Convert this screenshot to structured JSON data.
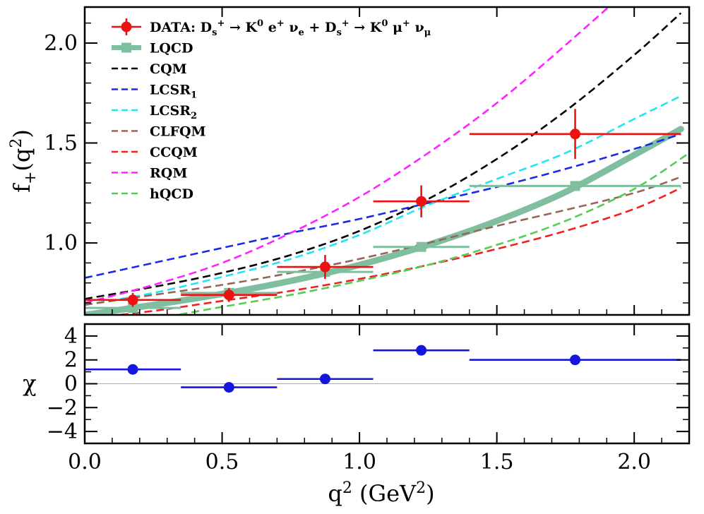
{
  "chart_data": [
    {
      "type": "line",
      "title": "",
      "xlabel": "q^2 (GeV^2)",
      "ylabel": "f_+(q^2)",
      "xlim": [
        0.0,
        2.2
      ],
      "ylim": [
        0.64,
        2.18
      ],
      "yticks": [
        1.0,
        1.5,
        2.0
      ],
      "ytick_labels": [
        "1.0",
        "1.5",
        "2.0"
      ],
      "grid": false,
      "legend_placement": "top-left",
      "legend": [
        {
          "key": "data",
          "text": "DATA: D_s^+ → K^0 e^+ ν_e + D_s^+ → K^0 μ^+ ν_μ"
        },
        {
          "key": "lqcd",
          "text": "LQCD"
        },
        {
          "key": "cqm",
          "text": "CQM"
        },
        {
          "key": "lcsr1",
          "text": "LCSR_1"
        },
        {
          "key": "lcsr2",
          "text": "LCSR_2"
        },
        {
          "key": "clfqm",
          "text": "CLFQM"
        },
        {
          "key": "ccqm",
          "text": "CCQM"
        },
        {
          "key": "rqm",
          "text": "RQM"
        },
        {
          "key": "hqcd",
          "text": "hQCD"
        }
      ],
      "data_points": {
        "name": "DATA",
        "color": "#ee1111",
        "points": [
          {
            "x": 0.175,
            "xlo": 0.0,
            "xhi": 0.35,
            "y": 0.715,
            "yerr": 0.035
          },
          {
            "x": 0.525,
            "xlo": 0.35,
            "xhi": 0.7,
            "y": 0.74,
            "yerr": 0.035
          },
          {
            "x": 0.875,
            "xlo": 0.7,
            "xhi": 1.05,
            "y": 0.88,
            "yerr": 0.06
          },
          {
            "x": 1.225,
            "xlo": 1.05,
            "xhi": 1.4,
            "y": 1.208,
            "yerr": 0.08
          },
          {
            "x": 1.785,
            "xlo": 1.4,
            "xhi": 2.17,
            "y": 1.545,
            "yerr": 0.125
          }
        ]
      },
      "lqcd_points": {
        "name": "LQCD",
        "color": "#7fbf9f",
        "points": [
          {
            "x": 0.175,
            "xlo": 0.0,
            "xhi": 0.35,
            "y": 0.675
          },
          {
            "x": 0.525,
            "xlo": 0.35,
            "xhi": 0.7,
            "y": 0.75
          },
          {
            "x": 0.875,
            "xlo": 0.7,
            "xhi": 1.05,
            "y": 0.855
          },
          {
            "x": 1.225,
            "xlo": 1.05,
            "xhi": 1.4,
            "y": 0.98
          },
          {
            "x": 1.785,
            "xlo": 1.4,
            "xhi": 2.17,
            "y": 1.285
          }
        ]
      },
      "series": [
        {
          "key": "lqcd",
          "name": "LQCD",
          "color": "#7fbf9f",
          "style": "band",
          "x": [
            0.0,
            0.25,
            0.5,
            0.75,
            1.0,
            1.25,
            1.5,
            1.75,
            2.0,
            2.17
          ],
          "y": [
            0.64,
            0.69,
            0.745,
            0.81,
            0.89,
            0.99,
            1.11,
            1.255,
            1.44,
            1.57
          ]
        },
        {
          "key": "cqm",
          "name": "CQM",
          "color": "#000000",
          "style": "dashed",
          "x": [
            0.0,
            0.25,
            0.5,
            0.75,
            1.0,
            1.25,
            1.5,
            1.75,
            2.0,
            2.17
          ],
          "y": [
            0.72,
            0.78,
            0.85,
            0.94,
            1.06,
            1.22,
            1.42,
            1.66,
            1.94,
            2.15
          ]
        },
        {
          "key": "lcsr1",
          "name": "LCSR_1",
          "color": "#1a2be6",
          "style": "dashed",
          "x": [
            0.0,
            0.25,
            0.5,
            0.75,
            1.0,
            1.25,
            1.5,
            1.75,
            2.0,
            2.17
          ],
          "y": [
            0.825,
            0.9,
            0.975,
            1.05,
            1.12,
            1.2,
            1.28,
            1.37,
            1.47,
            1.545
          ]
        },
        {
          "key": "lcsr2",
          "name": "LCSR_2",
          "color": "#22e5f0",
          "style": "dashed",
          "x": [
            0.0,
            0.25,
            0.5,
            0.75,
            1.0,
            1.25,
            1.5,
            1.75,
            2.0,
            2.17
          ],
          "y": [
            0.69,
            0.75,
            0.83,
            0.92,
            1.04,
            1.19,
            1.32,
            1.45,
            1.62,
            1.735
          ]
        },
        {
          "key": "clfqm",
          "name": "CLFQM",
          "color": "#996655",
          "style": "dashed",
          "x": [
            0.0,
            0.25,
            0.5,
            0.75,
            1.0,
            1.25,
            1.5,
            1.75,
            2.0,
            2.17
          ],
          "y": [
            0.69,
            0.74,
            0.79,
            0.85,
            0.92,
            1.0,
            1.085,
            1.165,
            1.25,
            1.33
          ]
        },
        {
          "key": "ccqm",
          "name": "CCQM",
          "color": "#ee2222",
          "style": "dashed",
          "x": [
            0.0,
            0.25,
            0.5,
            0.75,
            1.0,
            1.25,
            1.5,
            1.75,
            2.0,
            2.17
          ],
          "y": [
            0.62,
            0.66,
            0.71,
            0.76,
            0.82,
            0.89,
            0.97,
            1.06,
            1.17,
            1.275
          ]
        },
        {
          "key": "rqm",
          "name": "RQM",
          "color": "#ff22ff",
          "style": "dashed",
          "x": [
            0.0,
            0.25,
            0.5,
            0.75,
            1.0,
            1.25,
            1.5,
            1.75,
            2.0,
            2.17
          ],
          "y": [
            0.7,
            0.79,
            0.9,
            1.05,
            1.23,
            1.45,
            1.7,
            1.99,
            2.3,
            2.55
          ]
        },
        {
          "key": "hqcd",
          "name": "hQCD",
          "color": "#55cc55",
          "style": "dashed",
          "x": [
            0.0,
            0.25,
            0.5,
            0.75,
            1.0,
            1.25,
            1.5,
            1.75,
            2.0,
            2.2
          ],
          "y": [
            0.57,
            0.62,
            0.68,
            0.74,
            0.81,
            0.89,
            0.99,
            1.11,
            1.27,
            1.45
          ]
        }
      ]
    },
    {
      "type": "scatter",
      "title": "",
      "xlabel": "q^2 (GeV^2)",
      "ylabel": "χ",
      "xlim": [
        0.0,
        2.2
      ],
      "ylim": [
        -5.0,
        5.0
      ],
      "xticks": [
        0.0,
        0.5,
        1.0,
        1.5,
        2.0
      ],
      "xtick_labels": [
        "0.0",
        "0.5",
        "1.0",
        "1.5",
        "2.0"
      ],
      "yticks": [
        -4,
        -2,
        0,
        2,
        4
      ],
      "ytick_labels": [
        "−4",
        "−2",
        "0",
        "2",
        "4"
      ],
      "grid": false,
      "zero_line": true,
      "series": [
        {
          "name": "",
          "color": "#1515e0",
          "points": [
            {
              "x": 0.175,
              "xlo": 0.0,
              "xhi": 0.35,
              "y": 1.2
            },
            {
              "x": 0.525,
              "xlo": 0.35,
              "xhi": 0.7,
              "y": -0.3
            },
            {
              "x": 0.875,
              "xlo": 0.7,
              "xhi": 1.05,
              "y": 0.4
            },
            {
              "x": 1.225,
              "xlo": 1.05,
              "xhi": 1.4,
              "y": 2.8
            },
            {
              "x": 1.785,
              "xlo": 1.4,
              "xhi": 2.17,
              "y": 2.0
            }
          ]
        }
      ]
    }
  ]
}
